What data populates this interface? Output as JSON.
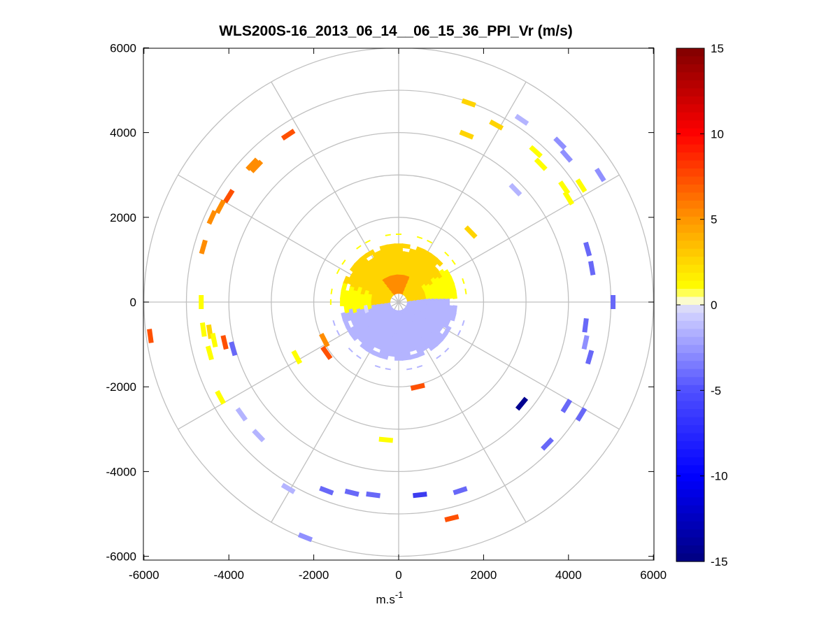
{
  "chart_data": {
    "type": "scatter",
    "title": "WLS200S-16_2013_06_14__06_15_36_PPI_Vr (m/s)",
    "xlabel": "m.s",
    "xlabel_superscript": "-1",
    "ylabel": "",
    "xlim": [
      -6000,
      6000
    ],
    "ylim": [
      -6000,
      6000
    ],
    "xticks": [
      "-6000",
      "-4000",
      "-2000",
      "0",
      "2000",
      "4000",
      "6000"
    ],
    "yticks": [
      "6000",
      "4000",
      "2000",
      "0",
      "-2000",
      "-4000",
      "-6000"
    ],
    "polar_grid": {
      "rings": [
        1000,
        2000,
        3000,
        4000,
        5000,
        6000
      ],
      "spoke_angles_deg": [
        0,
        30,
        60,
        90,
        120,
        150,
        180,
        210,
        240,
        270,
        300,
        330
      ]
    },
    "colorbar": {
      "min": -15,
      "max": 15,
      "ticks": [
        "15",
        "10",
        "5",
        "0",
        "-5",
        "-10",
        "-15"
      ],
      "colormap": "blue-white-yellow-red",
      "colors": [
        "#000080",
        "#0000ff",
        "#8080ff",
        "#ffffff",
        "#ffff00",
        "#ff8000",
        "#ff0000",
        "#800000"
      ]
    },
    "core_region": {
      "radius_max": 1350,
      "north_value": 2.5,
      "south_value": -1.8
    },
    "segments": [
      {
        "x": -2600,
        "y": 3950,
        "v": 6
      },
      {
        "x": -3450,
        "y": 3250,
        "v": 5.5
      },
      {
        "x": -3350,
        "y": 3200,
        "v": 4.5
      },
      {
        "x": -4000,
        "y": 2500,
        "v": 6
      },
      {
        "x": -4200,
        "y": 2250,
        "v": 4
      },
      {
        "x": -4400,
        "y": 2000,
        "v": 5
      },
      {
        "x": -4600,
        "y": 1300,
        "v": 4.5
      },
      {
        "x": -4650,
        "y": 0,
        "v": 1.5
      },
      {
        "x": -4600,
        "y": -650,
        "v": 1.5
      },
      {
        "x": -4450,
        "y": -700,
        "v": 3.5
      },
      {
        "x": -4350,
        "y": -900,
        "v": 1
      },
      {
        "x": -4450,
        "y": -1200,
        "v": 0.8
      },
      {
        "x": -4100,
        "y": -950,
        "v": 6
      },
      {
        "x": -5850,
        "y": -800,
        "v": 6
      },
      {
        "x": -3900,
        "y": -1100,
        "v": -5
      },
      {
        "x": -4200,
        "y": -2250,
        "v": 1.5
      },
      {
        "x": -3700,
        "y": -2650,
        "v": -2
      },
      {
        "x": -3300,
        "y": -3150,
        "v": -2
      },
      {
        "x": -2400,
        "y": -1300,
        "v": 1.5
      },
      {
        "x": -1700,
        "y": -1200,
        "v": 9
      },
      {
        "x": -1750,
        "y": -900,
        "v": 5
      },
      {
        "x": -2600,
        "y": -4400,
        "v": -1
      },
      {
        "x": -2200,
        "y": -5550,
        "v": -3
      },
      {
        "x": -1700,
        "y": -4450,
        "v": -4
      },
      {
        "x": -1100,
        "y": -4500,
        "v": -5
      },
      {
        "x": -600,
        "y": -4550,
        "v": -4
      },
      {
        "x": -300,
        "y": -3250,
        "v": 1.5
      },
      {
        "x": 500,
        "y": -4550,
        "v": -6
      },
      {
        "x": 1450,
        "y": -4450,
        "v": -4
      },
      {
        "x": 1250,
        "y": -5100,
        "v": 6.5
      },
      {
        "x": 450,
        "y": -2000,
        "v": 7
      },
      {
        "x": 2900,
        "y": -2400,
        "v": -13
      },
      {
        "x": 3500,
        "y": -3350,
        "v": -5
      },
      {
        "x": 3950,
        "y": -2450,
        "v": -5
      },
      {
        "x": 4300,
        "y": -2650,
        "v": -5
      },
      {
        "x": 4500,
        "y": -1300,
        "v": -4
      },
      {
        "x": 4400,
        "y": -950,
        "v": -3
      },
      {
        "x": 4400,
        "y": -550,
        "v": -4
      },
      {
        "x": 5050,
        "y": 0,
        "v": -5
      },
      {
        "x": 4550,
        "y": 800,
        "v": -5
      },
      {
        "x": 4450,
        "y": 1250,
        "v": -4
      },
      {
        "x": 4750,
        "y": 3000,
        "v": -3
      },
      {
        "x": 3950,
        "y": 3450,
        "v": -3
      },
      {
        "x": 3800,
        "y": 3750,
        "v": -2.5
      },
      {
        "x": 2900,
        "y": 4300,
        "v": -1
      },
      {
        "x": 2750,
        "y": 2650,
        "v": -1
      },
      {
        "x": 1650,
        "y": 4700,
        "v": 3.5
      },
      {
        "x": 2300,
        "y": 4180,
        "v": 3
      },
      {
        "x": 1600,
        "y": 3950,
        "v": 2
      },
      {
        "x": 3230,
        "y": 3550,
        "v": 1.5
      },
      {
        "x": 3350,
        "y": 3250,
        "v": 1.5
      },
      {
        "x": 3900,
        "y": 2700,
        "v": 1.5
      },
      {
        "x": 4300,
        "y": 2750,
        "v": 1
      },
      {
        "x": 4000,
        "y": 2450,
        "v": 1.5
      },
      {
        "x": 1700,
        "y": 1650,
        "v": 2.5
      }
    ]
  }
}
